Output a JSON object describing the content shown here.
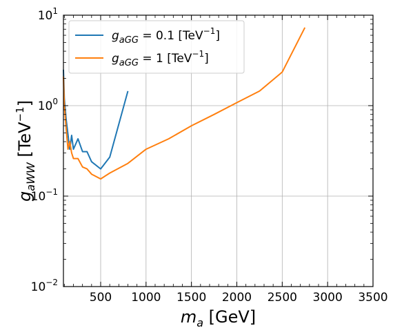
{
  "chart_data": {
    "type": "line",
    "xlabel": {
      "main": "m",
      "sub": "a",
      "unit": " [GeV]"
    },
    "ylabel": {
      "main": "g",
      "sub": "aWW",
      "unit_pre": " [TeV",
      "unit_sup": "−1",
      "unit_post": "]"
    },
    "xlim": [
      90,
      3500
    ],
    "ylim": [
      0.01,
      10
    ],
    "x_scale": "linear",
    "y_scale": "log",
    "grid": true,
    "legend_position": "top-left",
    "x_ticks": [
      {
        "value": 500,
        "label": "500"
      },
      {
        "value": 1000,
        "label": "1000"
      },
      {
        "value": 1500,
        "label": "1500"
      },
      {
        "value": 2000,
        "label": "2000"
      },
      {
        "value": 2500,
        "label": "2500"
      },
      {
        "value": 3000,
        "label": "3000"
      },
      {
        "value": 3500,
        "label": "3500"
      }
    ],
    "y_ticks": [
      {
        "value": 0.01,
        "base": "10",
        "exp": "−2"
      },
      {
        "value": 0.1,
        "base": "10",
        "exp": "−1"
      },
      {
        "value": 1,
        "base": "10",
        "exp": "0"
      },
      {
        "value": 10,
        "base": "10",
        "exp": "1"
      }
    ],
    "series": [
      {
        "name": "g_aGG = 0.1 [TeV^-1]",
        "legend": {
          "g": "g",
          "sub": "aGG",
          "eq": " = 0.1 [TeV",
          "sup": "−1",
          "end": "]"
        },
        "color": "#1f77b4",
        "x": [
          90,
          100,
          120,
          140,
          160,
          180,
          200,
          250,
          300,
          350,
          400,
          500,
          600,
          800
        ],
        "y": [
          2.5,
          1.2,
          0.7,
          0.48,
          0.33,
          0.47,
          0.33,
          0.43,
          0.31,
          0.31,
          0.24,
          0.2,
          0.27,
          1.45
        ]
      },
      {
        "name": "g_aGG = 1 [TeV^-1]",
        "legend": {
          "g": "g",
          "sub": "aGG",
          "eq": " = 1 [TeV",
          "sup": "−1",
          "end": "]"
        },
        "color": "#ff7f0e",
        "x": [
          90,
          100,
          120,
          140,
          160,
          180,
          200,
          250,
          300,
          350,
          400,
          500,
          600,
          800,
          1000,
          1250,
          1500,
          1750,
          2000,
          2250,
          2500,
          2750
        ],
        "y": [
          2.1,
          1.0,
          0.55,
          0.33,
          0.4,
          0.3,
          0.26,
          0.26,
          0.21,
          0.2,
          0.175,
          0.155,
          0.18,
          0.23,
          0.33,
          0.43,
          0.6,
          0.8,
          1.08,
          1.45,
          2.35,
          7.3
        ]
      }
    ]
  }
}
